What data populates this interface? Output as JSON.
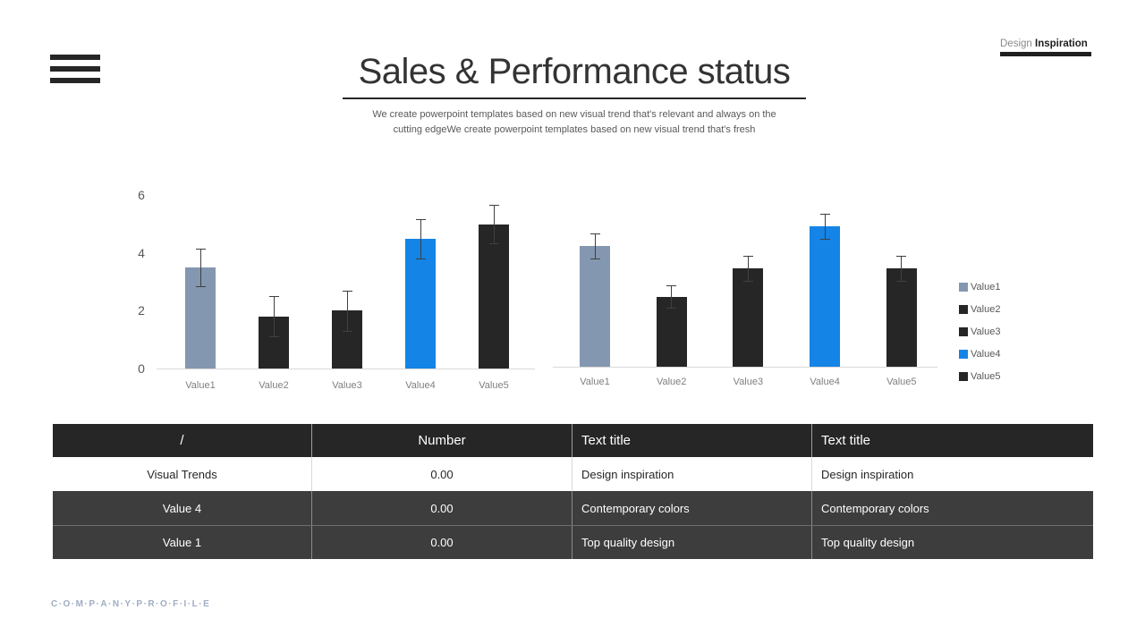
{
  "header": {
    "title": "Sales & Performance status",
    "subtitle_line1": "We create powerpoint templates based on new visual trend that's relevant and always on the",
    "subtitle_line2": "cutting edgeWe create powerpoint templates based on new visual trend that's fresh",
    "brand": {
      "light": "Design",
      "bold": "Inspiration"
    }
  },
  "chart_data": [
    {
      "type": "bar",
      "title": "",
      "categories": [
        "Value1",
        "Value2",
        "Value3",
        "Value4",
        "Value5"
      ],
      "values": [
        3.5,
        1.8,
        2.0,
        4.5,
        5.0
      ],
      "error_bars": [
        0.65,
        0.7,
        0.7,
        0.68,
        0.68
      ],
      "bar_colors": [
        "#8497B0",
        "#262626",
        "#262626",
        "#1484E6",
        "#262626"
      ],
      "xlabel": "",
      "ylabel": "",
      "ylim": [
        0,
        6
      ],
      "yticks": [
        0,
        2,
        4,
        6
      ],
      "grid": false,
      "legend_position": "none"
    },
    {
      "type": "bar",
      "title": "",
      "categories": [
        "Value1",
        "Value2",
        "Value3",
        "Value4",
        "Value5"
      ],
      "values": [
        4.3,
        2.5,
        3.5,
        5.0,
        3.5
      ],
      "error_bars": [
        0.45,
        0.4,
        0.45,
        0.45,
        0.45
      ],
      "bar_colors": [
        "#8497B0",
        "#262626",
        "#262626",
        "#1484E6",
        "#262626"
      ],
      "xlabel": "",
      "ylabel": "",
      "ylim": [
        0,
        6
      ],
      "yticks": [],
      "grid": false,
      "legend_position": "right"
    }
  ],
  "legend": {
    "position": "right",
    "entries": [
      {
        "label": "Value1",
        "color": "#8497B0"
      },
      {
        "label": "Value2",
        "color": "#262626"
      },
      {
        "label": "Value3",
        "color": "#262626"
      },
      {
        "label": "Value4",
        "color": "#1484E6"
      },
      {
        "label": "Value5",
        "color": "#262626"
      }
    ]
  },
  "table": {
    "headers": [
      "/",
      "Number",
      "Text title",
      "Text title"
    ],
    "rows": [
      {
        "style": "light",
        "cells": [
          "Visual Trends",
          "0.00",
          "Design inspiration",
          "Design inspiration"
        ]
      },
      {
        "style": "dark",
        "cells": [
          "Value 4",
          "0.00",
          "Contemporary colors",
          "Contemporary colors"
        ]
      },
      {
        "style": "dark",
        "cells": [
          "Value 1",
          "0.00",
          "Top quality design",
          "Top quality design"
        ]
      }
    ]
  },
  "footer": {
    "company_profile": "C·O·M·P·A·N·Y·P·R·O·F·I·L·E"
  },
  "colors": {
    "accent_blue": "#1484E6",
    "blue_gray": "#8497B0",
    "bar_dark": "#262626",
    "error_bar": "#404040",
    "axis_line": "#d9d9d9",
    "table_header_bg": "#262626",
    "table_dark_row_bg": "#3d3d3d"
  }
}
